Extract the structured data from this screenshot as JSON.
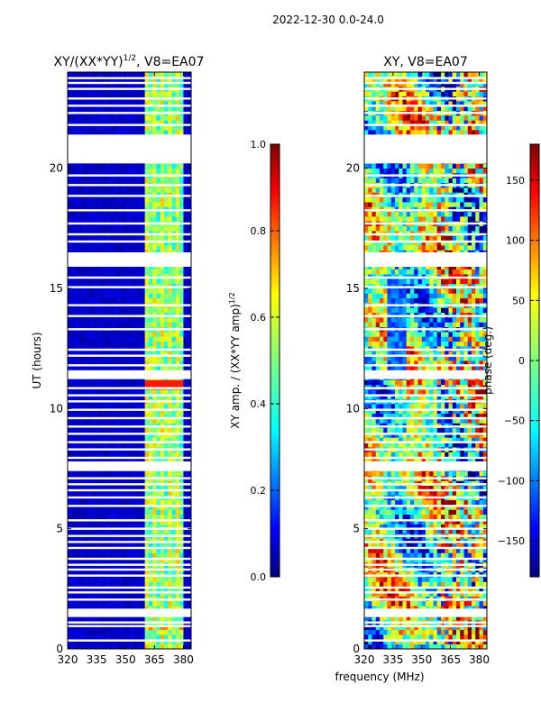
{
  "figure": {
    "suptitle": "2022-12-30 0.0-24.0",
    "xlabel": "frequency (MHz)"
  },
  "chart_data": [
    {
      "type": "heatmap",
      "title": "XY/(XX*YY)",
      "title_superscript": "1/2",
      "title_suffix": ", V8=EA07",
      "xlabel": "",
      "ylabel": "UT (hours)",
      "xlim": [
        320,
        384
      ],
      "ylim": [
        0,
        24
      ],
      "xticks": [
        320,
        335,
        350,
        365,
        380
      ],
      "yticks": [
        0,
        5,
        10,
        15,
        20
      ],
      "colormap": "jet",
      "colorbar": {
        "label": "XY amp. / (XX*YY amp)",
        "label_superscript": "1/2",
        "range": [
          0.0,
          1.0
        ],
        "ticks": [
          "0.0",
          "0.2",
          "0.4",
          "0.6",
          "0.8",
          "1.0"
        ]
      }
    },
    {
      "type": "heatmap",
      "title": "XY, V8=EA07",
      "xlabel": "",
      "ylabel": "",
      "xlim": [
        320,
        384
      ],
      "ylim": [
        0,
        24
      ],
      "xticks": [
        320,
        335,
        350,
        365,
        380
      ],
      "yticks": [
        0,
        5,
        10,
        15,
        20
      ],
      "colormap": "jet",
      "colorbar": {
        "label": "phase (deg.)",
        "range": [
          -180,
          180
        ],
        "ticks": [
          "−150",
          "−100",
          "−50",
          "0",
          "50",
          "100",
          "150"
        ]
      }
    }
  ],
  "colors": {
    "background": "#ffffff",
    "axes_edge": "#000000",
    "colormap_stops": [
      "#00007f",
      "#0000ff",
      "#007fff",
      "#00ffff",
      "#7fff7f",
      "#ffff00",
      "#ff7f00",
      "#ff0000",
      "#7f0000"
    ]
  },
  "flagged_rows_ut_hours": [
    0.35,
    0.95,
    1.1,
    1.55,
    2.05,
    2.35,
    2.55,
    3.05,
    3.3,
    3.5,
    3.75,
    4.2,
    4.45,
    4.7,
    5.0,
    5.35,
    5.95,
    6.3,
    6.6,
    6.85,
    7.1,
    7.55,
    7.7,
    7.95,
    8.3,
    8.6,
    8.95,
    9.25,
    9.6,
    9.95,
    10.3,
    10.55,
    10.85,
    11.35,
    11.55,
    11.8,
    12.2,
    12.45,
    13.3,
    13.85,
    14.3,
    15.05,
    15.45,
    16.1,
    16.25,
    16.95,
    17.25,
    17.7,
    18.25,
    18.85,
    19.3,
    19.7,
    20.55,
    20.75,
    21.35,
    21.8,
    22.3,
    22.6,
    22.9,
    23.3,
    23.55,
    23.75
  ]
}
